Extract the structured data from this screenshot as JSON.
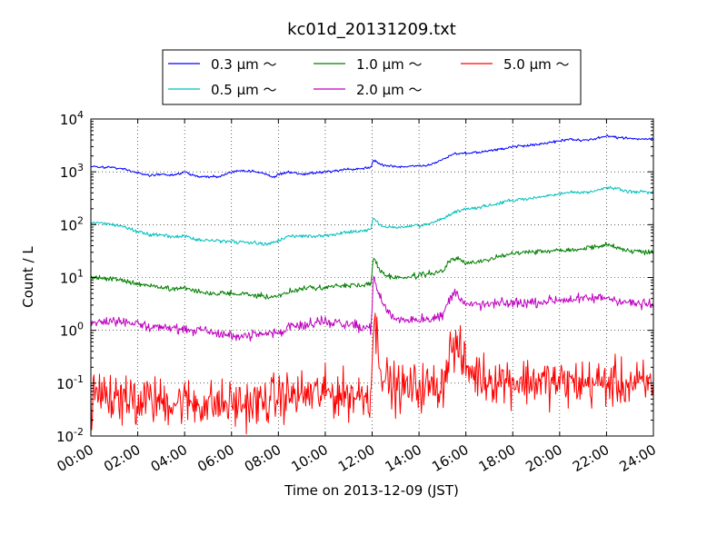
{
  "chart_data": {
    "type": "line",
    "title": "kc01d_20131209.txt",
    "xlabel": "Time on 2013-12-09 (JST)",
    "ylabel": "Count / L",
    "x_unit": "hours",
    "xlim": [
      0,
      24
    ],
    "ylim_exp": [
      -2,
      4
    ],
    "yscale": "log",
    "grid": true,
    "legend_position": "top-center",
    "x_ticks": [
      "00:00",
      "02:00",
      "04:00",
      "06:00",
      "08:00",
      "10:00",
      "12:00",
      "14:00",
      "16:00",
      "18:00",
      "20:00",
      "22:00",
      "24:00"
    ],
    "y_tick_base": "10",
    "y_tick_exponents": [
      "-2",
      "-1",
      "0",
      "1",
      "2",
      "3",
      "4"
    ],
    "series": [
      {
        "name": "0.3 μm ～",
        "color": "#0000ff",
        "noise": 0.015,
        "points": [
          [
            0,
            1250
          ],
          [
            1,
            1200
          ],
          [
            1.5,
            1100
          ],
          [
            2,
            950
          ],
          [
            2.5,
            850
          ],
          [
            3,
            900
          ],
          [
            3.5,
            850
          ],
          [
            4,
            1000
          ],
          [
            4.5,
            820
          ],
          [
            5,
            800
          ],
          [
            5.5,
            820
          ],
          [
            6,
            1000
          ],
          [
            6.5,
            1050
          ],
          [
            7,
            1020
          ],
          [
            7.5,
            900
          ],
          [
            7.8,
            780
          ],
          [
            8,
            900
          ],
          [
            8.5,
            1000
          ],
          [
            9,
            900
          ],
          [
            9.5,
            950
          ],
          [
            10,
            1000
          ],
          [
            10.5,
            1050
          ],
          [
            11,
            1100
          ],
          [
            11.5,
            1150
          ],
          [
            11.95,
            1200
          ],
          [
            12.05,
            1700
          ],
          [
            12.3,
            1400
          ],
          [
            12.6,
            1300
          ],
          [
            13,
            1250
          ],
          [
            13.5,
            1250
          ],
          [
            14,
            1300
          ],
          [
            14.5,
            1350
          ],
          [
            15,
            1700
          ],
          [
            15.5,
            2200
          ],
          [
            16,
            2300
          ],
          [
            16.5,
            2300
          ],
          [
            17,
            2500
          ],
          [
            17.5,
            2700
          ],
          [
            18,
            3000
          ],
          [
            19,
            3300
          ],
          [
            20,
            3800
          ],
          [
            20.5,
            4100
          ],
          [
            21,
            3900
          ],
          [
            21.5,
            4200
          ],
          [
            22,
            4800
          ],
          [
            22.5,
            4400
          ],
          [
            23,
            4300
          ],
          [
            24,
            4200
          ]
        ]
      },
      {
        "name": "0.5 μm ～",
        "color": "#00bfbf",
        "noise": 0.02,
        "points": [
          [
            0,
            110
          ],
          [
            1,
            100
          ],
          [
            1.5,
            90
          ],
          [
            2,
            75
          ],
          [
            2.5,
            65
          ],
          [
            3,
            65
          ],
          [
            3.5,
            58
          ],
          [
            4,
            62
          ],
          [
            4.5,
            52
          ],
          [
            5,
            50
          ],
          [
            5.5,
            50
          ],
          [
            6,
            48
          ],
          [
            7,
            45
          ],
          [
            7.5,
            42
          ],
          [
            8,
            50
          ],
          [
            8.5,
            60
          ],
          [
            9,
            62
          ],
          [
            9.5,
            60
          ],
          [
            10,
            62
          ],
          [
            10.5,
            68
          ],
          [
            11,
            72
          ],
          [
            11.5,
            75
          ],
          [
            11.95,
            80
          ],
          [
            12.05,
            140
          ],
          [
            12.3,
            100
          ],
          [
            12.6,
            90
          ],
          [
            13,
            88
          ],
          [
            13.5,
            92
          ],
          [
            14,
            95
          ],
          [
            14.5,
            105
          ],
          [
            15,
            130
          ],
          [
            15.5,
            170
          ],
          [
            16,
            200
          ],
          [
            16.5,
            210
          ],
          [
            17,
            230
          ],
          [
            17.5,
            260
          ],
          [
            18,
            290
          ],
          [
            19,
            320
          ],
          [
            20,
            380
          ],
          [
            20.5,
            420
          ],
          [
            21,
            400
          ],
          [
            21.5,
            430
          ],
          [
            22,
            520
          ],
          [
            22.5,
            470
          ],
          [
            23,
            420
          ],
          [
            24,
            410
          ]
        ]
      },
      {
        "name": "1.0 μm ～",
        "color": "#007f00",
        "noise": 0.03,
        "points": [
          [
            0,
            10
          ],
          [
            1,
            9.5
          ],
          [
            1.5,
            8.5
          ],
          [
            2,
            7.5
          ],
          [
            2.5,
            7
          ],
          [
            3,
            6.5
          ],
          [
            3.5,
            6
          ],
          [
            4,
            6.5
          ],
          [
            4.5,
            5.5
          ],
          [
            5,
            5
          ],
          [
            5.5,
            5
          ],
          [
            6,
            5
          ],
          [
            7,
            4.6
          ],
          [
            7.5,
            4.3
          ],
          [
            8,
            4.5
          ],
          [
            8.5,
            5.5
          ],
          [
            9,
            6
          ],
          [
            9.5,
            6.5
          ],
          [
            10,
            6.5
          ],
          [
            10.5,
            7
          ],
          [
            11,
            7
          ],
          [
            11.5,
            7.2
          ],
          [
            11.95,
            7.5
          ],
          [
            12.05,
            25
          ],
          [
            12.3,
            14
          ],
          [
            12.6,
            11
          ],
          [
            13,
            10
          ],
          [
            13.5,
            10
          ],
          [
            14,
            11
          ],
          [
            14.5,
            12
          ],
          [
            15,
            13
          ],
          [
            15.3,
            20
          ],
          [
            15.6,
            24
          ],
          [
            16,
            18
          ],
          [
            16.5,
            20
          ],
          [
            17,
            22
          ],
          [
            17.5,
            25
          ],
          [
            18,
            30
          ],
          [
            19,
            31
          ],
          [
            20,
            33
          ],
          [
            21,
            35
          ],
          [
            22,
            42
          ],
          [
            22.5,
            36
          ],
          [
            23,
            32
          ],
          [
            24,
            30
          ]
        ]
      },
      {
        "name": "2.0 μm ～",
        "color": "#bf00bf",
        "noise": 0.06,
        "points": [
          [
            0,
            1.4
          ],
          [
            0.5,
            1.5
          ],
          [
            1,
            1.5
          ],
          [
            1.5,
            1.45
          ],
          [
            2,
            1.3
          ],
          [
            2.5,
            1.2
          ],
          [
            3,
            1.15
          ],
          [
            3.5,
            1.1
          ],
          [
            4,
            1.05
          ],
          [
            4.5,
            1.0
          ],
          [
            5,
            0.95
          ],
          [
            5.5,
            0.85
          ],
          [
            6,
            0.8
          ],
          [
            6.5,
            0.78
          ],
          [
            7,
            0.8
          ],
          [
            7.5,
            0.85
          ],
          [
            8,
            0.9
          ],
          [
            8.5,
            1.2
          ],
          [
            9,
            1.3
          ],
          [
            9.5,
            1.4
          ],
          [
            10,
            1.45
          ],
          [
            10.5,
            1.4
          ],
          [
            11,
            1.3
          ],
          [
            11.5,
            1.2
          ],
          [
            11.95,
            1.1
          ],
          [
            12.05,
            10
          ],
          [
            12.3,
            4.5
          ],
          [
            12.6,
            2.5
          ],
          [
            13,
            1.6
          ],
          [
            13.5,
            1.6
          ],
          [
            14,
            1.65
          ],
          [
            14.5,
            1.7
          ],
          [
            15,
            1.8
          ],
          [
            15.3,
            4
          ],
          [
            15.6,
            5.5
          ],
          [
            16,
            3
          ],
          [
            16.5,
            3
          ],
          [
            17,
            3.1
          ],
          [
            17.5,
            3.2
          ],
          [
            18,
            3.3
          ],
          [
            19,
            3.4
          ],
          [
            20,
            3.8
          ],
          [
            21,
            3.9
          ],
          [
            22,
            4.2
          ],
          [
            22.5,
            3.7
          ],
          [
            23,
            3.3
          ],
          [
            24,
            3.0
          ]
        ]
      },
      {
        "name": "5.0 μm ～",
        "color": "#ff0000",
        "noise": 0.28,
        "points": [
          [
            0,
            0.055
          ],
          [
            1,
            0.05
          ],
          [
            2,
            0.05
          ],
          [
            3,
            0.045
          ],
          [
            4,
            0.045
          ],
          [
            5,
            0.04
          ],
          [
            6,
            0.04
          ],
          [
            7,
            0.04
          ],
          [
            7.5,
            0.045
          ],
          [
            8,
            0.055
          ],
          [
            9,
            0.06
          ],
          [
            10,
            0.065
          ],
          [
            11,
            0.06
          ],
          [
            11.95,
            0.06
          ],
          [
            12.05,
            1.5
          ],
          [
            12.2,
            0.8
          ],
          [
            12.4,
            0.2
          ],
          [
            12.6,
            0.11
          ],
          [
            13,
            0.08
          ],
          [
            13.5,
            0.08
          ],
          [
            14,
            0.085
          ],
          [
            14.5,
            0.085
          ],
          [
            15,
            0.09
          ],
          [
            15.3,
            0.4
          ],
          [
            15.6,
            0.5
          ],
          [
            16,
            0.2
          ],
          [
            16.5,
            0.14
          ],
          [
            17,
            0.12
          ],
          [
            17.5,
            0.12
          ],
          [
            18,
            0.11
          ],
          [
            19,
            0.11
          ],
          [
            20,
            0.1
          ],
          [
            21,
            0.1
          ],
          [
            22,
            0.1
          ],
          [
            23,
            0.095
          ],
          [
            24,
            0.09
          ]
        ]
      }
    ]
  }
}
